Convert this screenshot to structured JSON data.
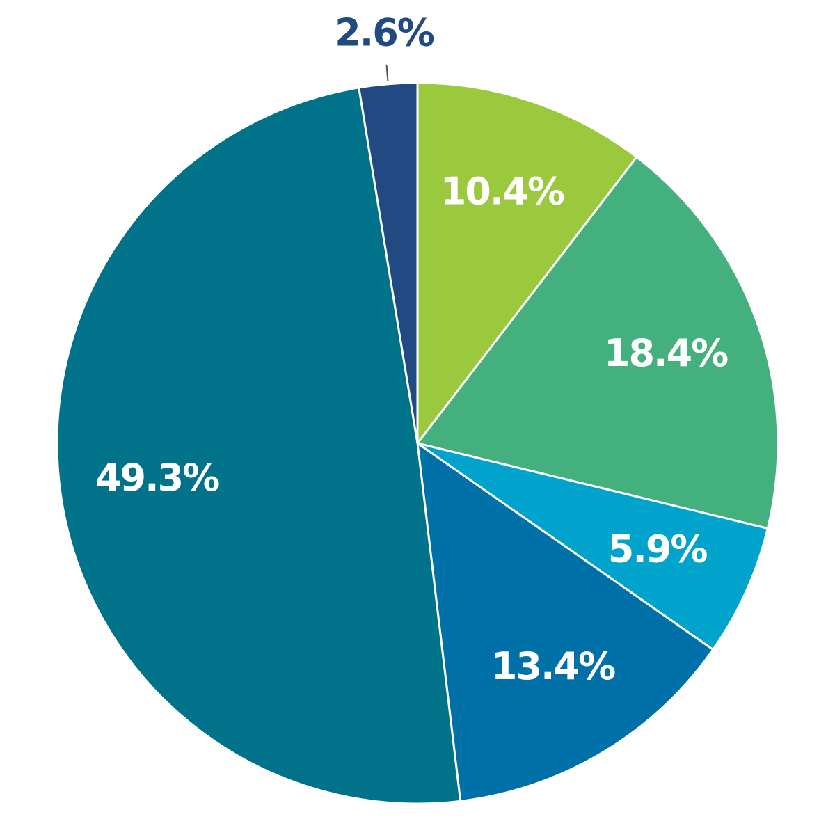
{
  "chart_data": {
    "type": "pie",
    "values": [
      10.4,
      18.4,
      5.9,
      13.4,
      49.3,
      2.6
    ],
    "value_labels": [
      "10.4%",
      "18.4%",
      "5.9%",
      "13.4%",
      "49.3%",
      "2.6%"
    ],
    "colors": [
      "#9bc93d",
      "#43b07d",
      "#00a3cc",
      "#0070a8",
      "#00738a",
      "#214a82"
    ]
  }
}
